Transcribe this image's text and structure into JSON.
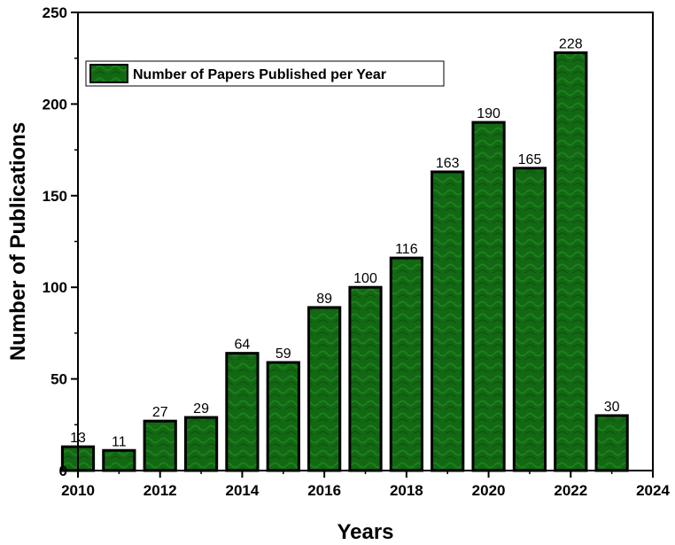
{
  "chart_data": {
    "type": "bar",
    "x": [
      2010,
      2011,
      2012,
      2013,
      2014,
      2015,
      2016,
      2017,
      2018,
      2019,
      2020,
      2021,
      2022,
      2023
    ],
    "values": [
      13,
      11,
      27,
      29,
      64,
      59,
      89,
      100,
      116,
      163,
      190,
      165,
      228,
      30
    ],
    "series_name": "Number of Papers Published per Year",
    "xlabel": "Years",
    "ylabel": "Number of Publications",
    "xlim": [
      2010,
      2024
    ],
    "ylim": [
      0,
      250
    ],
    "x_ticks": [
      2010,
      2012,
      2014,
      2016,
      2018,
      2020,
      2022,
      2024
    ],
    "y_ticks": [
      0,
      50,
      100,
      150,
      200,
      250
    ],
    "bar_color": "#136813",
    "bar_border_color": "#000000",
    "legend_position": "top-left",
    "grid": false
  }
}
